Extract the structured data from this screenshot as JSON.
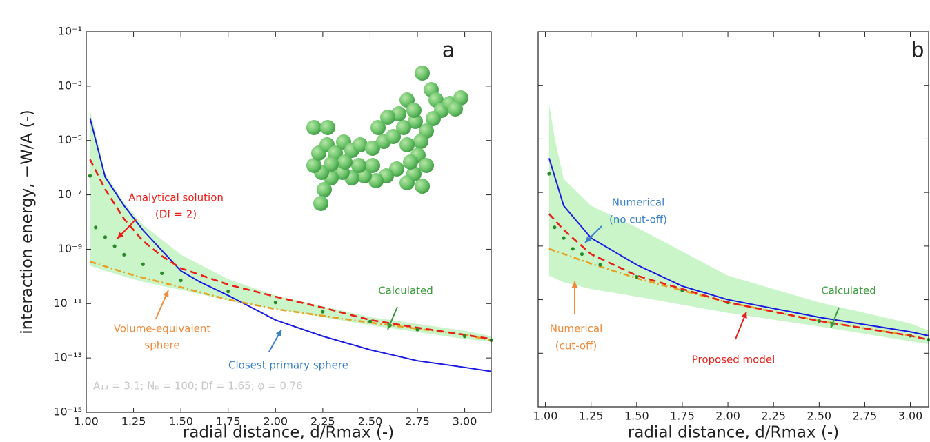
{
  "chart_data": [
    {
      "type": "line",
      "panel_label": "a",
      "xlabel": "radial distance, d/Rmax (-)",
      "ylabel": "interaction energy, −W/A (-)",
      "xlim": [
        1.0,
        3.14
      ],
      "ylim": [
        1e-15,
        0.1
      ],
      "log_y": true,
      "y_tick_labels": true,
      "xticks": [
        {
          "value": 1,
          "label": "1.00"
        },
        {
          "value": 1.25,
          "label": "1.25"
        },
        {
          "value": 1.5,
          "label": "1.50"
        },
        {
          "value": 1.75,
          "label": "1.75"
        },
        {
          "value": 2,
          "label": "2.00"
        },
        {
          "value": 2.25,
          "label": "2.25"
        },
        {
          "value": 2.5,
          "label": "2.50"
        },
        {
          "value": 2.75,
          "label": "2.75"
        },
        {
          "value": 3,
          "label": "3.00"
        }
      ],
      "yticks": [
        {
          "value": 1e-15,
          "label": "10⁻¹⁵"
        },
        {
          "value": 1e-13,
          "label": "10⁻¹³"
        },
        {
          "value": 1e-11,
          "label": "10⁻¹¹"
        },
        {
          "value": 1e-09,
          "label": "10⁻⁹"
        },
        {
          "value": 1e-07,
          "label": "10⁻⁷"
        },
        {
          "value": 1e-05,
          "label": "10⁻⁵"
        },
        {
          "value": 0.001,
          "label": "10⁻³"
        },
        {
          "value": 0.1,
          "label": "10⁻¹"
        }
      ],
      "band": {
        "color": "#c9f5c9",
        "x": [
          1.02,
          1.1,
          1.2,
          1.3,
          1.5,
          1.75,
          2.0,
          2.5,
          3.0,
          3.14
        ],
        "upper": [
          0.00013,
          6.3e-07,
          5e-08,
          7.9e-09,
          6.3e-10,
          7.9e-11,
          2e-11,
          3.2e-12,
          1e-12,
          6.3e-13
        ],
        "lower": [
          2.5e-10,
          1.6e-10,
          1e-10,
          6.3e-11,
          3.2e-11,
          1.3e-11,
          6.3e-12,
          1.6e-12,
          5e-13,
          4e-13
        ]
      },
      "series": [
        {
          "color": "#1a1ae0",
          "style": "solid",
          "x": [
            1.02,
            1.1,
            1.2,
            1.3,
            1.4,
            1.5,
            1.6,
            1.75,
            2.0,
            2.25,
            2.5,
            2.75,
            3.0,
            3.14
          ],
          "values": [
            6.6e-05,
            4.5e-07,
            4e-08,
            5e-09,
            8.9e-10,
            1.6e-10,
            6.3e-11,
            2e-11,
            2.5e-12,
            6.3e-13,
            2e-13,
            7.9e-14,
            4.5e-14,
            3.2e-14
          ]
        },
        {
          "color": "#e8a020",
          "style": "dashdot",
          "x": [
            1.02,
            1.25,
            1.5,
            1.75,
            2.0,
            2.5,
            3.0,
            3.14
          ],
          "values": [
            3.5e-10,
            1.1e-10,
            4e-11,
            1.4e-11,
            6.3e-12,
            2e-12,
            7.1e-13,
            4.5e-13
          ]
        },
        {
          "color": "#e8201a",
          "style": "dashed",
          "x": [
            1.02,
            1.1,
            1.2,
            1.3,
            1.4,
            1.5,
            1.75,
            2.0,
            2.25,
            2.5,
            2.75,
            3.0,
            3.14
          ],
          "values": [
            2e-06,
            1.6e-07,
            1.3e-08,
            2e-09,
            5.6e-10,
            2e-10,
            5e-11,
            1.8e-11,
            7.1e-12,
            2.5e-12,
            1.3e-12,
            7.1e-13,
            5e-13
          ]
        },
        {
          "color": "#2a8a2a",
          "style": "markers",
          "x": [
            1.02,
            1.05,
            1.1,
            1.15,
            1.2,
            1.3,
            1.4,
            1.5,
            1.75,
            2.0,
            2.25,
            2.5,
            2.75,
            3.0,
            3.14
          ],
          "values": [
            5e-07,
            6.3e-09,
            2.8e-09,
            1.3e-09,
            6.3e-10,
            2.8e-10,
            1.3e-10,
            7.1e-11,
            2.8e-11,
            1.1e-11,
            5e-12,
            2.2e-12,
            1.1e-12,
            6.3e-13,
            4.5e-13
          ]
        }
      ],
      "annotations": [
        {
          "text": "Analytical solution",
          "color": "#e8201a"
        },
        {
          "text": "(Df = 2)",
          "color": "#e8201a"
        },
        {
          "text": "Volume-equivalent",
          "color": "#f08a3a"
        },
        {
          "text": "sphere",
          "color": "#f08a3a"
        },
        {
          "text": "Closest primary sphere",
          "color": "#3a80c8"
        },
        {
          "text": "Calculated",
          "color": "#3a9a3a"
        },
        {
          "text": "A₁₃ = 3.1; Nₚ = 100; Df = 1.65; φ = 0.76",
          "color": "#c8c8c8"
        }
      ]
    },
    {
      "type": "line",
      "panel_label": "b",
      "xlabel": "radial distance, d/Rmax (-)",
      "xlim": [
        0.96,
        3.1
      ],
      "ylim": [
        1e-15,
        0.1
      ],
      "log_y": true,
      "y_tick_labels": false,
      "xticks": [
        {
          "value": 1,
          "label": "1.00"
        },
        {
          "value": 1.25,
          "label": "1.25"
        },
        {
          "value": 1.5,
          "label": "1.50"
        },
        {
          "value": 1.75,
          "label": "1.75"
        },
        {
          "value": 2,
          "label": "2.00"
        },
        {
          "value": 2.25,
          "label": "2.25"
        },
        {
          "value": 2.5,
          "label": "2.50"
        },
        {
          "value": 2.75,
          "label": "2.75"
        },
        {
          "value": 3,
          "label": "3.00"
        }
      ],
      "yticks": [
        1e-13,
        1e-11,
        1e-09,
        1e-07,
        1e-05,
        0.001
      ],
      "band": {
        "color": "#c9f5c9",
        "x": [
          1.02,
          1.05,
          1.1,
          1.25,
          1.5,
          2.0,
          2.5,
          3.0,
          3.1
        ],
        "upper": [
          0.0002,
          1.1e-05,
          3.2e-07,
          3.2e-08,
          5e-09,
          7.9e-11,
          7.9e-12,
          1.3e-12,
          7.1e-13
        ],
        "lower": [
          7.9e-11,
          6.3e-11,
          4.5e-11,
          2.5e-11,
          1.3e-11,
          3.2e-12,
          1e-12,
          2.8e-13,
          2.2e-13
        ]
      },
      "series": [
        {
          "color": "#1a1ae0",
          "style": "solid",
          "x": [
            1.02,
            1.1,
            1.25,
            1.5,
            1.75,
            2.0,
            2.5,
            3.0,
            3.1
          ],
          "values": [
            1.9e-06,
            3.2e-08,
            2e-09,
            2e-10,
            3.2e-11,
            1e-11,
            2.2e-12,
            6.3e-13,
            4.5e-13
          ]
        },
        {
          "color": "#e8a020",
          "style": "dashdot",
          "x": [
            1.02,
            1.25,
            1.5,
            1.75,
            2.0,
            2.5,
            3.0,
            3.1
          ],
          "values": [
            7.9e-10,
            2.2e-10,
            6.3e-11,
            2.2e-11,
            7.9e-12,
            1.6e-12,
            4.5e-13,
            3.2e-13
          ]
        },
        {
          "color": "#2a8a2a",
          "style": "markers",
          "x": [
            1.02,
            1.05,
            1.1,
            1.15,
            1.2,
            1.3,
            1.5,
            1.75,
            2.0,
            2.5,
            3.0,
            3.1
          ],
          "values": [
            5e-07,
            5e-09,
            2e-09,
            7.9e-10,
            5e-10,
            2e-10,
            7.1e-11,
            2.2e-11,
            7.9e-12,
            1.6e-12,
            4.5e-13,
            3.2e-13
          ]
        },
        {
          "color": "#e8201a",
          "style": "dashed",
          "x": [
            1.02,
            1.1,
            1.25,
            1.5,
            1.75,
            2.0,
            2.5,
            3.0,
            3.1
          ],
          "values": [
            1.6e-08,
            4e-09,
            5e-10,
            7.9e-11,
            2.5e-11,
            7.9e-12,
            1.6e-12,
            4.5e-13,
            3.2e-13
          ]
        }
      ],
      "annotations": [
        {
          "text": "Numerical",
          "color": "#3a80c8"
        },
        {
          "text": "(no cut-off)",
          "color": "#3a80c8"
        },
        {
          "text": "Numerical",
          "color": "#f08a3a"
        },
        {
          "text": "(cut-off)",
          "color": "#f08a3a"
        },
        {
          "text": "Calculated",
          "color": "#3a9a3a"
        },
        {
          "text": "Proposed model",
          "color": "#e8201a"
        }
      ]
    }
  ]
}
